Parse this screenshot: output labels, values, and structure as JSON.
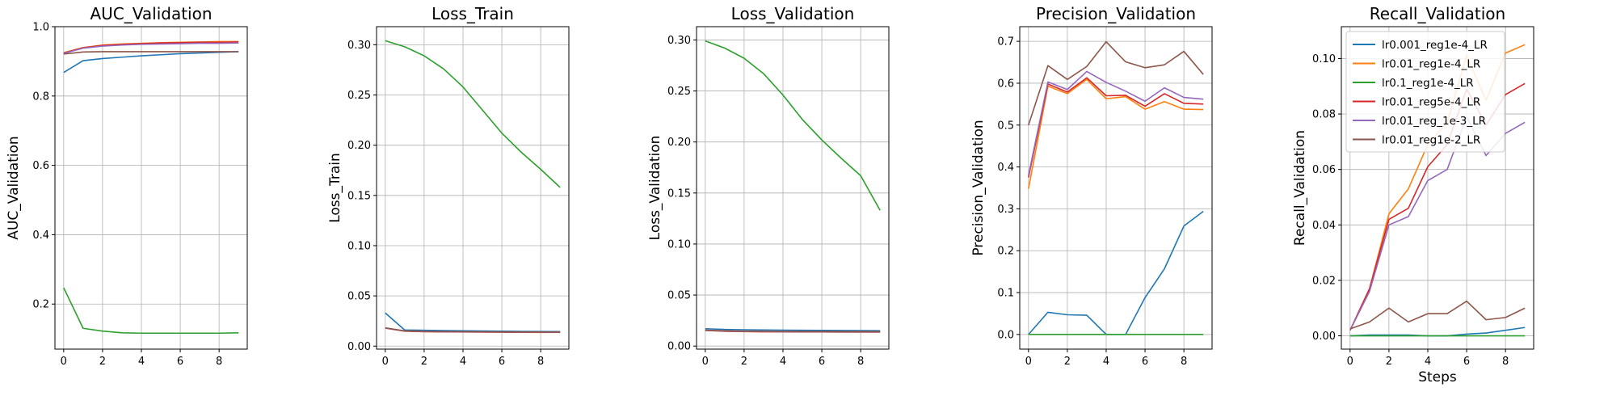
{
  "colors": {
    "lr0.001_reg1e-4_LR": "#1f77b4",
    "lr0.01_reg1e-4_LR": "#ff7f0e",
    "lr0.1_reg1e-4_LR": "#2ca02c",
    "lr0.01_reg5e-4_LR": "#d62728",
    "lr0.01_reg_1e-3_LR": "#9467bd",
    "lr0.01_reg1e-2_LR": "#8c564b"
  },
  "chart_data": [
    {
      "type": "line",
      "title": "AUC_Validation",
      "xlabel": "",
      "ylabel": "AUC_Validation",
      "xlim": [
        -0.45,
        9.45
      ],
      "ylim": [
        0.07,
        1.0
      ],
      "xticks": [
        0,
        2,
        4,
        6,
        8
      ],
      "yticks": [
        0.2,
        0.4,
        0.6,
        0.8,
        1.0
      ],
      "ytick_labels": [
        "0.2",
        "0.4",
        "0.6",
        "0.8",
        "1.0"
      ],
      "grid": true,
      "x": [
        0,
        1,
        2,
        3,
        4,
        5,
        6,
        7,
        8,
        9
      ],
      "series": [
        {
          "name": "lr0.001_reg1e-4_LR",
          "values": [
            0.868,
            0.902,
            0.908,
            0.912,
            0.916,
            0.919,
            0.922,
            0.924,
            0.926,
            0.928
          ]
        },
        {
          "name": "lr0.01_reg1e-4_LR",
          "values": [
            0.925,
            0.94,
            0.947,
            0.95,
            0.952,
            0.954,
            0.955,
            0.956,
            0.957,
            0.957
          ]
        },
        {
          "name": "lr0.1_reg1e-4_LR",
          "values": [
            0.247,
            0.13,
            0.122,
            0.117,
            0.116,
            0.116,
            0.116,
            0.116,
            0.116,
            0.117
          ]
        },
        {
          "name": "lr0.01_reg5e-4_LR",
          "values": [
            0.924,
            0.939,
            0.946,
            0.949,
            0.951,
            0.953,
            0.954,
            0.955,
            0.955,
            0.956
          ]
        },
        {
          "name": "lr0.01_reg_1e-3_LR",
          "values": [
            0.923,
            0.938,
            0.944,
            0.947,
            0.949,
            0.95,
            0.951,
            0.952,
            0.952,
            0.953
          ]
        },
        {
          "name": "lr0.01_reg1e-2_LR",
          "values": [
            0.921,
            0.927,
            0.928,
            0.928,
            0.928,
            0.928,
            0.928,
            0.928,
            0.928,
            0.928
          ]
        }
      ]
    },
    {
      "type": "line",
      "title": "Loss_Train",
      "xlabel": "",
      "ylabel": "Loss_Train",
      "xlim": [
        -0.45,
        9.45
      ],
      "ylim": [
        -0.003,
        0.318
      ],
      "xticks": [
        0,
        2,
        4,
        6,
        8
      ],
      "yticks": [
        0,
        0.05,
        0.1,
        0.15,
        0.2,
        0.25,
        0.3
      ],
      "ytick_labels": [
        "0.00",
        "0.05",
        "0.10",
        "0.15",
        "0.20",
        "0.25",
        "0.30"
      ],
      "grid": true,
      "x": [
        0,
        1,
        2,
        3,
        4,
        5,
        6,
        7,
        8,
        9
      ],
      "series": [
        {
          "name": "lr0.001_reg1e-4_LR",
          "values": [
            0.033,
            0.016,
            0.0158,
            0.0155,
            0.0153,
            0.0151,
            0.0149,
            0.0147,
            0.0146,
            0.0145
          ]
        },
        {
          "name": "lr0.01_reg1e-4_LR",
          "values": [
            0.018,
            0.0148,
            0.0143,
            0.0141,
            0.014,
            0.0139,
            0.0138,
            0.0137,
            0.0136,
            0.0136
          ]
        },
        {
          "name": "lr0.1_reg1e-4_LR",
          "values": [
            0.304,
            0.298,
            0.289,
            0.276,
            0.258,
            0.235,
            0.212,
            0.193,
            0.176,
            0.158
          ]
        },
        {
          "name": "lr0.01_reg5e-4_LR",
          "values": [
            0.018,
            0.0149,
            0.0144,
            0.0142,
            0.0141,
            0.014,
            0.0139,
            0.0138,
            0.0138,
            0.0137
          ]
        },
        {
          "name": "lr0.01_reg_1e-3_LR",
          "values": [
            0.018,
            0.015,
            0.0145,
            0.0143,
            0.0142,
            0.0141,
            0.014,
            0.0139,
            0.0139,
            0.0138
          ]
        },
        {
          "name": "lr0.01_reg1e-2_LR",
          "values": [
            0.0182,
            0.0152,
            0.0147,
            0.0145,
            0.0144,
            0.0143,
            0.0142,
            0.0141,
            0.0141,
            0.014
          ]
        }
      ]
    },
    {
      "type": "line",
      "title": "Loss_Validation",
      "xlabel": "",
      "ylabel": "Loss_Validation",
      "xlim": [
        -0.45,
        9.45
      ],
      "ylim": [
        -0.003,
        0.313
      ],
      "xticks": [
        0,
        2,
        4,
        6,
        8
      ],
      "yticks": [
        0,
        0.05,
        0.1,
        0.15,
        0.2,
        0.25,
        0.3
      ],
      "ytick_labels": [
        "0.00",
        "0.05",
        "0.10",
        "0.15",
        "0.20",
        "0.25",
        "0.30"
      ],
      "grid": true,
      "x": [
        0,
        1,
        2,
        3,
        4,
        5,
        6,
        7,
        8,
        9
      ],
      "series": [
        {
          "name": "lr0.001_reg1e-4_LR",
          "values": [
            0.017,
            0.0163,
            0.016,
            0.0158,
            0.0156,
            0.0155,
            0.0154,
            0.0153,
            0.0152,
            0.0151
          ]
        },
        {
          "name": "lr0.01_reg1e-4_LR",
          "values": [
            0.0153,
            0.0145,
            0.0142,
            0.014,
            0.0139,
            0.0138,
            0.0138,
            0.0137,
            0.0137,
            0.0137
          ]
        },
        {
          "name": "lr0.1_reg1e-4_LR",
          "values": [
            0.299,
            0.292,
            0.282,
            0.267,
            0.246,
            0.222,
            0.202,
            0.184,
            0.167,
            0.133
          ]
        },
        {
          "name": "lr0.01_reg5e-4_LR",
          "values": [
            0.0154,
            0.0146,
            0.0143,
            0.0141,
            0.014,
            0.0139,
            0.0139,
            0.0138,
            0.0138,
            0.0138
          ]
        },
        {
          "name": "lr0.01_reg_1e-3_LR",
          "values": [
            0.0155,
            0.0147,
            0.0144,
            0.0142,
            0.0141,
            0.014,
            0.014,
            0.0139,
            0.0139,
            0.0139
          ]
        },
        {
          "name": "lr0.01_reg1e-2_LR",
          "values": [
            0.0157,
            0.015,
            0.0147,
            0.0145,
            0.0144,
            0.0143,
            0.0143,
            0.0142,
            0.0142,
            0.0142
          ]
        }
      ]
    },
    {
      "type": "line",
      "title": "Precision_Validation",
      "xlabel": "",
      "ylabel": "Precision_Validation",
      "xlim": [
        -0.45,
        9.45
      ],
      "ylim": [
        -0.035,
        0.735
      ],
      "xticks": [
        0,
        2,
        4,
        6,
        8
      ],
      "yticks": [
        0,
        0.1,
        0.2,
        0.3,
        0.4,
        0.5,
        0.6,
        0.7
      ],
      "ytick_labels": [
        "0.0",
        "0.1",
        "0.2",
        "0.3",
        "0.4",
        "0.5",
        "0.6",
        "0.7"
      ],
      "grid": true,
      "x": [
        0,
        1,
        2,
        3,
        4,
        5,
        6,
        7,
        8,
        9
      ],
      "series": [
        {
          "name": "lr0.001_reg1e-4_LR",
          "values": [
            0.0,
            0.053,
            0.047,
            0.046,
            0.0,
            0.0,
            0.088,
            0.157,
            0.259,
            0.294
          ]
        },
        {
          "name": "lr0.01_reg1e-4_LR",
          "values": [
            0.348,
            0.593,
            0.575,
            0.609,
            0.563,
            0.568,
            0.538,
            0.556,
            0.538,
            0.537
          ]
        },
        {
          "name": "lr0.1_reg1e-4_LR",
          "values": [
            0.0,
            0.0,
            0.0,
            0.0,
            0.0,
            0.0,
            0.0,
            0.0,
            0.0,
            0.0
          ]
        },
        {
          "name": "lr0.01_reg5e-4_LR",
          "values": [
            0.375,
            0.598,
            0.579,
            0.613,
            0.57,
            0.571,
            0.545,
            0.575,
            0.552,
            0.55
          ]
        },
        {
          "name": "lr0.01_reg_1e-3_LR",
          "values": [
            0.38,
            0.603,
            0.585,
            0.628,
            0.602,
            0.581,
            0.557,
            0.589,
            0.566,
            0.562
          ]
        },
        {
          "name": "lr0.01_reg1e-2_LR",
          "values": [
            0.5,
            0.642,
            0.609,
            0.64,
            0.699,
            0.651,
            0.637,
            0.644,
            0.676,
            0.621
          ]
        }
      ]
    },
    {
      "type": "line",
      "title": "Recall_Validation",
      "xlabel": "Steps",
      "ylabel": "Recall_Validation",
      "xlim": [
        -0.45,
        9.45
      ],
      "ylim": [
        -0.0048,
        0.1115
      ],
      "xticks": [
        0,
        2,
        4,
        6,
        8
      ],
      "yticks": [
        0,
        0.02,
        0.04,
        0.06,
        0.08,
        0.1
      ],
      "ytick_labels": [
        "0.00",
        "0.02",
        "0.04",
        "0.06",
        "0.08",
        "0.10"
      ],
      "grid": true,
      "legend": "top-left",
      "x": [
        0,
        1,
        2,
        3,
        4,
        5,
        6,
        7,
        8,
        9
      ],
      "series": [
        {
          "name": "lr0.001_reg1e-4_LR",
          "values": [
            0.0,
            0.0003,
            0.0003,
            0.0003,
            0.0,
            0.0,
            0.0006,
            0.001,
            0.002,
            0.003
          ]
        },
        {
          "name": "lr0.01_reg1e-4_LR",
          "values": [
            0.002,
            0.017,
            0.044,
            0.053,
            0.069,
            0.077,
            0.101,
            0.085,
            0.102,
            0.105
          ]
        },
        {
          "name": "lr0.1_reg1e-4_LR",
          "values": [
            0.0,
            0.0,
            0.0,
            0.0,
            0.0,
            0.0,
            0.0,
            0.0,
            0.0,
            0.0
          ]
        },
        {
          "name": "lr0.01_reg5e-4_LR",
          "values": [
            0.002,
            0.017,
            0.042,
            0.046,
            0.061,
            0.069,
            0.089,
            0.076,
            0.087,
            0.091
          ]
        },
        {
          "name": "lr0.01_reg_1e-3_LR",
          "values": [
            0.002,
            0.016,
            0.04,
            0.043,
            0.056,
            0.06,
            0.079,
            0.065,
            0.073,
            0.077
          ]
        },
        {
          "name": "lr0.01_reg1e-2_LR",
          "values": [
            0.0025,
            0.005,
            0.01,
            0.005,
            0.008,
            0.008,
            0.0125,
            0.0058,
            0.0066,
            0.01
          ]
        }
      ]
    }
  ]
}
